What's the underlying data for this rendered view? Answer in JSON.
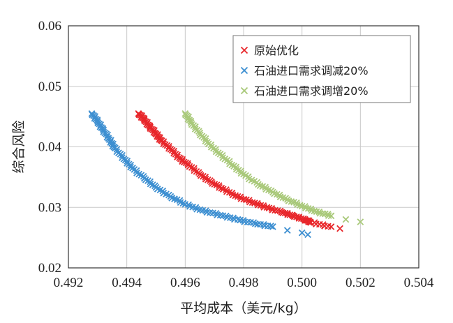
{
  "chart_data": {
    "type": "scatter",
    "title": "",
    "xlabel": "平均成本（美元/kg）",
    "ylabel": "综合风险",
    "xlim": [
      0.492,
      0.504
    ],
    "ylim": [
      0.02,
      0.06
    ],
    "xticks": [
      "0.492",
      "0.494",
      "0.496",
      "0.498",
      "0.500",
      "0.502",
      "0.504"
    ],
    "yticks": [
      "0.02",
      "0.03",
      "0.04",
      "0.05",
      "0.06"
    ],
    "grid": true,
    "legend_position": "top-right",
    "marker": "x",
    "series": [
      {
        "name": "原始优化",
        "color": "#e8262a",
        "x": [
          0.4944,
          0.4946,
          0.4948,
          0.495,
          0.4952,
          0.4955,
          0.4958,
          0.4961,
          0.4965,
          0.4969,
          0.4973,
          0.4978,
          0.4983,
          0.4988,
          0.4993,
          0.4997,
          0.5001,
          0.5003,
          0.501,
          0.5013
        ],
        "y": [
          0.0455,
          0.0445,
          0.0433,
          0.0421,
          0.041,
          0.0396,
          0.0382,
          0.037,
          0.0355,
          0.0342,
          0.033,
          0.0318,
          0.0308,
          0.03,
          0.0292,
          0.0286,
          0.028,
          0.0275,
          0.0268,
          0.0265
        ]
      },
      {
        "name": "石油进口需求调减20%",
        "color": "#3d8fd1",
        "x": [
          0.4928,
          0.493,
          0.4932,
          0.4934,
          0.4936,
          0.4939,
          0.4942,
          0.4946,
          0.495,
          0.4955,
          0.496,
          0.4966,
          0.4972,
          0.4978,
          0.4984,
          0.499,
          0.4995,
          0.5,
          0.5002
        ],
        "y": [
          0.0455,
          0.0442,
          0.0428,
          0.0412,
          0.0398,
          0.038,
          0.0365,
          0.0348,
          0.0333,
          0.0318,
          0.0305,
          0.0295,
          0.0287,
          0.028,
          0.0273,
          0.0268,
          0.0262,
          0.0258,
          0.0255
        ]
      },
      {
        "name": "石油进口需求调增20%",
        "color": "#a9c97a",
        "x": [
          0.496,
          0.4962,
          0.4965,
          0.4968,
          0.4972,
          0.4976,
          0.498,
          0.4985,
          0.499,
          0.4995,
          0.5,
          0.5005,
          0.501,
          0.5015,
          0.502
        ],
        "y": [
          0.0455,
          0.044,
          0.0423,
          0.0405,
          0.0388,
          0.037,
          0.0355,
          0.0338,
          0.0325,
          0.0313,
          0.0302,
          0.0293,
          0.0286,
          0.028,
          0.0276
        ]
      }
    ]
  }
}
